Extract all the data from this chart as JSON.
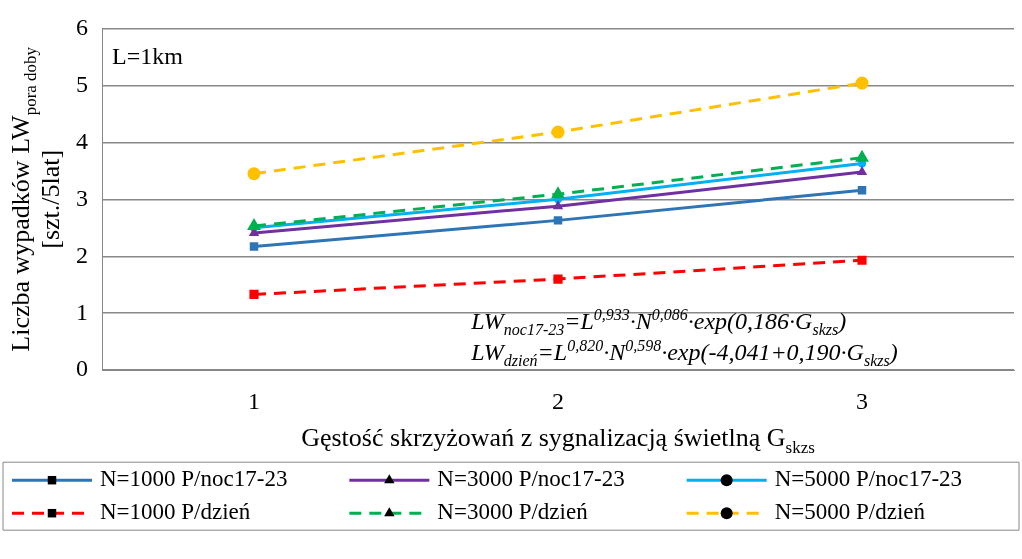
{
  "chart_data": {
    "type": "line",
    "xlabel": "Gęstość skrzyżowań z sygnalizacją świetlną G$_{skzs}$",
    "ylabel": "Liczba wypadków LW$_{pora doby}$ [szt./5lat]",
    "categories": [
      "1",
      "2",
      "3"
    ],
    "ylim": [
      0,
      6
    ],
    "yticks": [
      0,
      1,
      2,
      3,
      4,
      5,
      6
    ],
    "grid": "y",
    "legend": "bottom",
    "annotations": [
      "L=1km",
      "LW$_{noc17-23}$=L$^{0,933}$·N$^{0,086}$·exp(0,186·G$_{skzs}$)",
      "LW$_{dzień}$=L$^{0,820}$·N$^{0,598}$·exp(-4,041+0,190·G$_{skzs}$)"
    ],
    "series": [
      {
        "name": "N=1000 P/noc17-23",
        "color": "#2e75b6",
        "marker": "square",
        "line_style": "solid",
        "values": [
          2.17,
          2.63,
          3.16
        ]
      },
      {
        "name": "N=3000 P/noc17-23",
        "color": "#7030a0",
        "marker": "triangle",
        "line_style": "solid",
        "values": [
          2.41,
          2.88,
          3.48
        ]
      },
      {
        "name": "N=5000 P/noc17-23",
        "color": "#00b0f0",
        "marker": "circle",
        "line_style": "solid",
        "values": [
          2.5,
          3.0,
          3.63
        ]
      },
      {
        "name": "N=1000 P/dzień",
        "color": "#ff0000",
        "marker": "square",
        "line_style": "dashed",
        "values": [
          1.33,
          1.6,
          1.93
        ]
      },
      {
        "name": "N=3000 P/dzień",
        "color": "#00b050",
        "marker": "triangle",
        "line_style": "dashed",
        "values": [
          2.53,
          3.09,
          3.73
        ]
      },
      {
        "name": "N=5000 P/dzień",
        "color": "#ffc000",
        "marker": "circle",
        "line_style": "dashed",
        "values": [
          3.45,
          4.18,
          5.04
        ]
      }
    ]
  }
}
